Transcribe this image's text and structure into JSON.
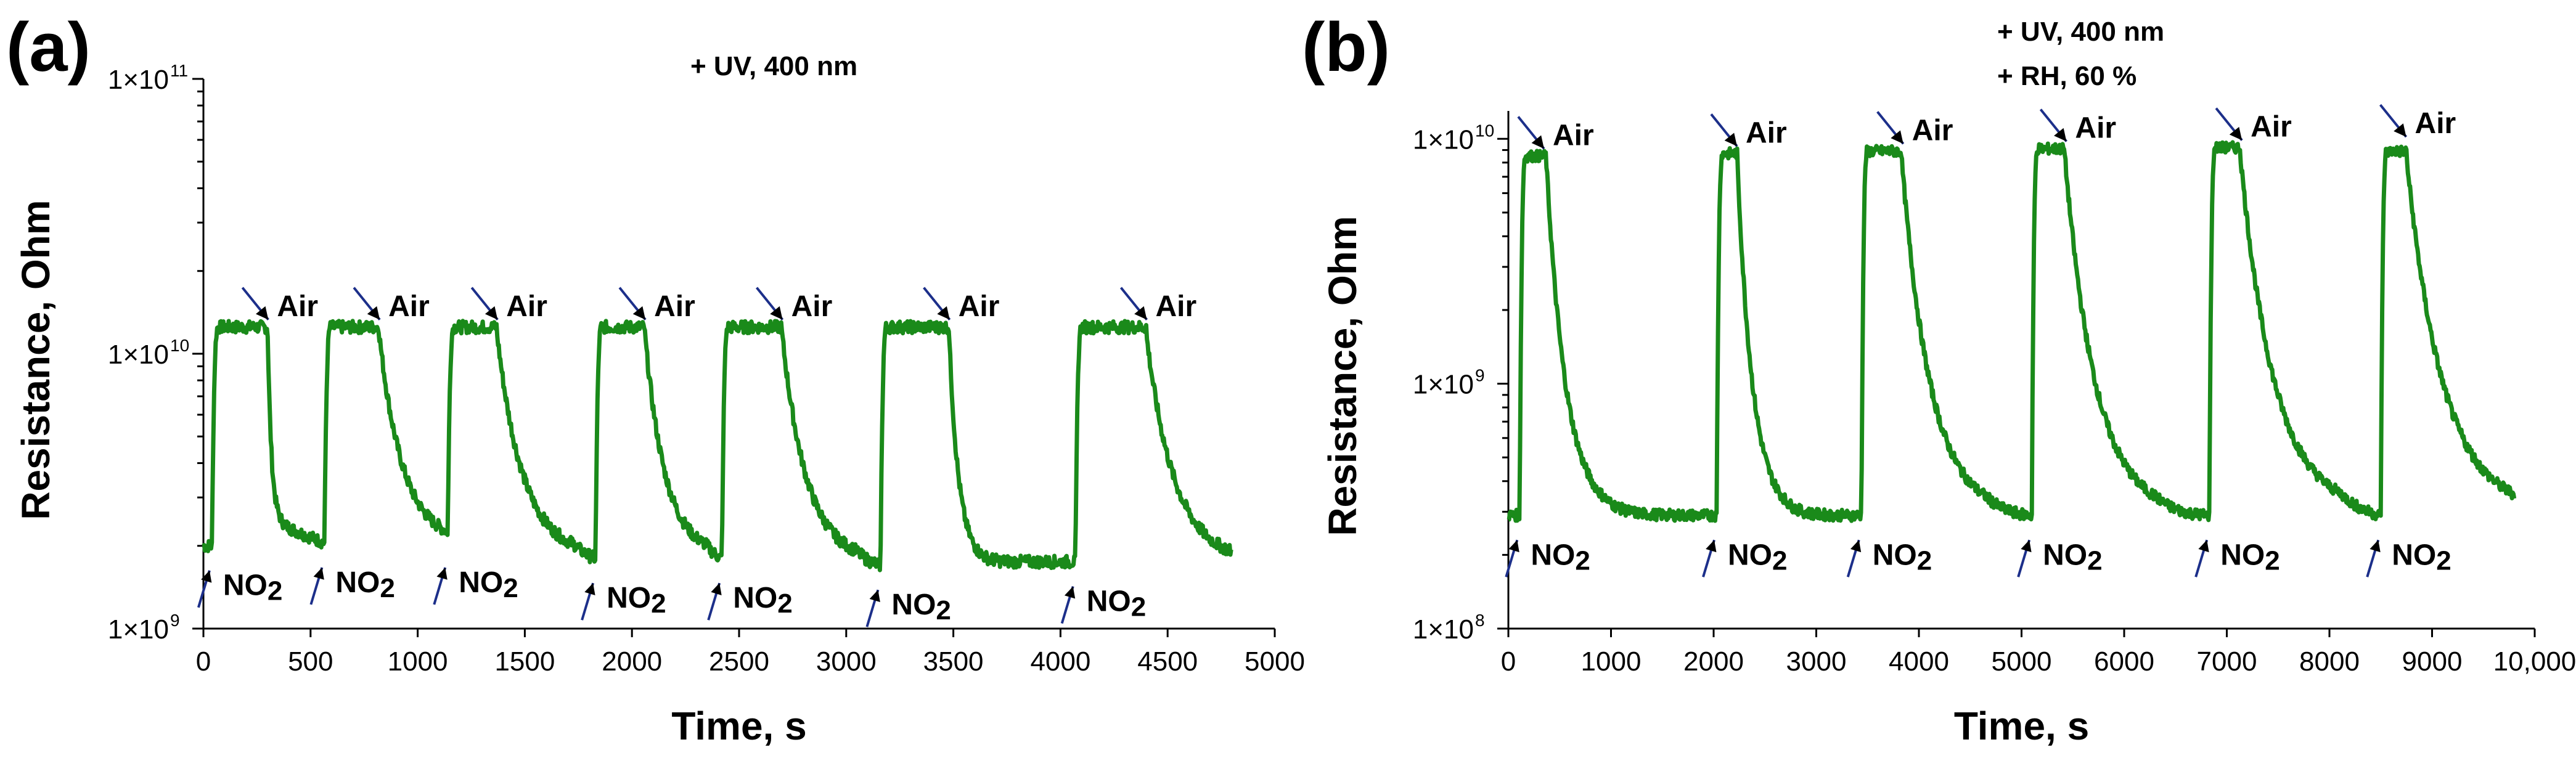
{
  "colors": {
    "series": "#1a8a1a",
    "arrow": "#1c2f8a",
    "axis": "#000000"
  },
  "chart_data": [
    {
      "type": "line",
      "panel_label": "(a)",
      "title": "",
      "conditions": [
        "+ UV, 400 nm"
      ],
      "xlabel": "Time, s",
      "ylabel": "Resistance, Ohm",
      "yscale": "log",
      "xlim": [
        0,
        5000
      ],
      "ylim": [
        1000000000,
        100000000000
      ],
      "xticks": [
        0,
        500,
        1000,
        1500,
        2000,
        2500,
        3000,
        3500,
        4000,
        4500,
        5000
      ],
      "xtick_labels": [
        "0",
        "500",
        "1000",
        "1500",
        "2000",
        "2500",
        "3000",
        "3500",
        "4000",
        "4500",
        "5000"
      ],
      "yticks": [
        {
          "value": 1000000000,
          "base": "1×10",
          "exp": "9"
        },
        {
          "value": 10000000000,
          "base": "1×10",
          "exp": "10"
        },
        {
          "value": 100000000000,
          "base": "1×10",
          "exp": "11"
        }
      ],
      "series": [
        {
          "name": "Resistance",
          "end_time": 4800,
          "cycles": [
            {
              "on": 40,
              "off": 300,
              "base_before": 2000000000,
              "high": 12500000000,
              "base_after": 2400000000,
              "tau": 18
            },
            {
              "on": 565,
              "off": 820,
              "base_before": 2050000000,
              "high": 12500000000,
              "base_after": 2050000000,
              "tau": 110
            },
            {
              "on": 1140,
              "off": 1370,
              "base_before": 2050000000,
              "high": 12500000000,
              "base_after": 1850000000,
              "tau": 120
            },
            {
              "on": 1830,
              "off": 2060,
              "base_before": 1800000000,
              "high": 12500000000,
              "base_after": 1850000000,
              "tau": 95
            },
            {
              "on": 2420,
              "off": 2700,
              "base_before": 1800000000,
              "high": 12500000000,
              "base_after": 1750000000,
              "tau": 115
            },
            {
              "on": 3160,
              "off": 3480,
              "base_before": 1700000000,
              "high": 12500000000,
              "base_after": 1750000000,
              "tau": 45
            },
            {
              "on": 4070,
              "off": 4400,
              "base_before": 1750000000,
              "high": 12500000000,
              "base_after": 1750000000,
              "tau": 130
            }
          ]
        }
      ],
      "annotations": [
        {
          "text": "Air",
          "x": 280,
          "y": 12500000000,
          "kind": "air"
        },
        {
          "text": "Air",
          "x": 800,
          "y": 12500000000,
          "kind": "air"
        },
        {
          "text": "Air",
          "x": 1350,
          "y": 12500000000,
          "kind": "air"
        },
        {
          "text": "Air",
          "x": 2040,
          "y": 12500000000,
          "kind": "air"
        },
        {
          "text": "Air",
          "x": 2680,
          "y": 12500000000,
          "kind": "air"
        },
        {
          "text": "Air",
          "x": 3460,
          "y": 12500000000,
          "kind": "air"
        },
        {
          "text": "Air",
          "x": 4380,
          "y": 12500000000,
          "kind": "air"
        },
        {
          "text": "NO",
          "sub": "2",
          "x": 40,
          "y": 2000000000,
          "kind": "gas"
        },
        {
          "text": "NO",
          "sub": "2",
          "x": 565,
          "y": 2050000000,
          "kind": "gas"
        },
        {
          "text": "NO",
          "sub": "2",
          "x": 1140,
          "y": 2050000000,
          "kind": "gas"
        },
        {
          "text": "NO",
          "sub": "2",
          "x": 1830,
          "y": 1800000000,
          "kind": "gas"
        },
        {
          "text": "NO",
          "sub": "2",
          "x": 2420,
          "y": 1800000000,
          "kind": "gas"
        },
        {
          "text": "NO",
          "sub": "2",
          "x": 3160,
          "y": 1700000000,
          "kind": "gas"
        },
        {
          "text": "NO",
          "sub": "2",
          "x": 4070,
          "y": 1750000000,
          "kind": "gas"
        }
      ]
    },
    {
      "type": "line",
      "panel_label": "(b)",
      "title": "",
      "conditions": [
        "+ UV, 400 nm",
        "+ RH, 60 %"
      ],
      "xlabel": "Time, s",
      "ylabel": "Resistance, Ohm",
      "yscale": "log",
      "xlim": [
        0,
        10000
      ],
      "ylim": [
        100000000,
        13000000000
      ],
      "xticks": [
        0,
        1000,
        2000,
        3000,
        4000,
        5000,
        6000,
        7000,
        8000,
        9000,
        10000
      ],
      "xtick_labels": [
        "0",
        "1000",
        "2000",
        "3000",
        "4000",
        "5000",
        "6000",
        "7000",
        "8000",
        "9000",
        "10,000"
      ],
      "yticks": [
        {
          "value": 100000000,
          "base": "1×10",
          "exp": "8"
        },
        {
          "value": 1000000000,
          "base": "1×10",
          "exp": "9"
        },
        {
          "value": 10000000000,
          "base": "1×10",
          "exp": "10"
        }
      ],
      "series": [
        {
          "name": "Resistance",
          "end_time": 9800,
          "cycles": [
            {
              "on": 110,
              "off": 370,
              "base_before": 290000000,
              "high": 8500000000,
              "base_after": 290000000,
              "tau": 190
            },
            {
              "on": 2030,
              "off": 2230,
              "base_before": 290000000,
              "high": 8700000000,
              "base_after": 290000000,
              "tau": 150
            },
            {
              "on": 3440,
              "off": 3830,
              "base_before": 290000000,
              "high": 8900000000,
              "base_after": 290000000,
              "tau": 280
            },
            {
              "on": 5100,
              "off": 5420,
              "base_before": 290000000,
              "high": 9100000000,
              "base_after": 290000000,
              "tau": 300
            },
            {
              "on": 6830,
              "off": 7130,
              "base_before": 290000000,
              "high": 9200000000,
              "base_after": 300000000,
              "tau": 330
            },
            {
              "on": 8500,
              "off": 8750,
              "base_before": 290000000,
              "high": 8900000000,
              "base_after": 300000000,
              "tau": 350
            }
          ]
        }
      ],
      "annotations": [
        {
          "text": "Air",
          "x": 300,
          "y": 8500000000,
          "kind": "air"
        },
        {
          "text": "Air",
          "x": 2180,
          "y": 8700000000,
          "kind": "air"
        },
        {
          "text": "Air",
          "x": 3800,
          "y": 8900000000,
          "kind": "air"
        },
        {
          "text": "Air",
          "x": 5390,
          "y": 9100000000,
          "kind": "air"
        },
        {
          "text": "Air",
          "x": 7100,
          "y": 9200000000,
          "kind": "air"
        },
        {
          "text": "Air",
          "x": 8700,
          "y": 9500000000,
          "kind": "air"
        },
        {
          "text": "NO",
          "sub": "2",
          "x": 110,
          "y": 290000000,
          "kind": "gas"
        },
        {
          "text": "NO",
          "sub": "2",
          "x": 2030,
          "y": 290000000,
          "kind": "gas"
        },
        {
          "text": "NO",
          "sub": "2",
          "x": 3440,
          "y": 290000000,
          "kind": "gas"
        },
        {
          "text": "NO",
          "sub": "2",
          "x": 5100,
          "y": 290000000,
          "kind": "gas"
        },
        {
          "text": "NO",
          "sub": "2",
          "x": 6830,
          "y": 290000000,
          "kind": "gas"
        },
        {
          "text": "NO",
          "sub": "2",
          "x": 8500,
          "y": 290000000,
          "kind": "gas"
        }
      ]
    }
  ]
}
